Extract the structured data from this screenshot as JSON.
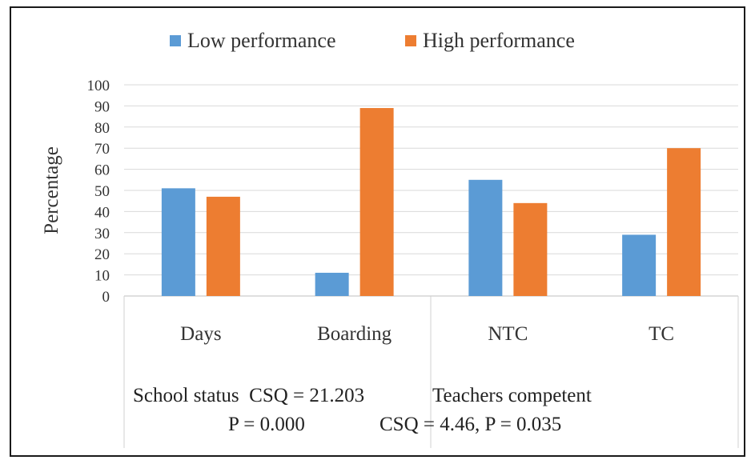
{
  "chart_data": {
    "type": "bar",
    "categories": [
      "Days",
      "Boarding",
      "NTC",
      "TC"
    ],
    "series": [
      {
        "name": "Low performance",
        "values": [
          51,
          11,
          55,
          29
        ],
        "color": "#5b9bd5"
      },
      {
        "name": "High performance",
        "values": [
          47,
          89,
          44,
          70
        ],
        "color": "#ed7d31"
      }
    ],
    "ylabel": "Percentage",
    "ylim": [
      0,
      100
    ],
    "yticks": [
      "0",
      "10",
      "20",
      "30",
      "40",
      "50",
      "60",
      "70",
      "80",
      "90",
      "100"
    ],
    "grid": true,
    "legend": "top",
    "annotations": {
      "left_line1": "School status  CSQ = 21.203",
      "left_line2": "P = 0.000",
      "right_line1": "Teachers competent",
      "right_line2": "CSQ = 4.46, P = 0.035"
    }
  }
}
